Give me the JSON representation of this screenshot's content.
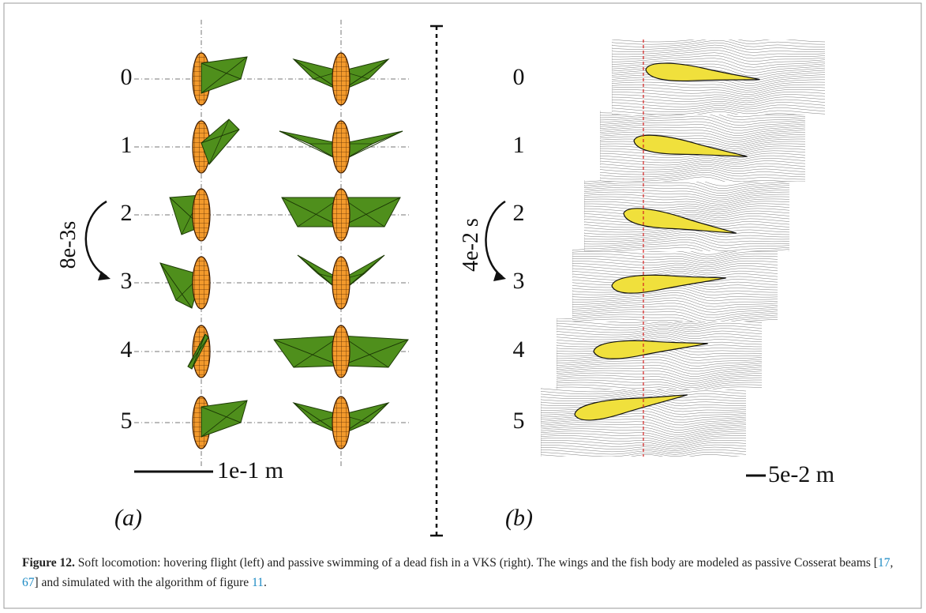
{
  "panel_a": {
    "frame_labels": [
      "0",
      "1",
      "2",
      "3",
      "4",
      "5"
    ],
    "time_step": "8e-3s",
    "scale_bar": "1e-1 m",
    "label": "(a)"
  },
  "panel_b": {
    "frame_labels": [
      "0",
      "1",
      "2",
      "3",
      "4",
      "5"
    ],
    "time_step": "4e-2 s",
    "scale_bar": "5e-2 m",
    "label": "(b)"
  },
  "caption": {
    "label": "Figure 12.",
    "text_1": " Soft locomotion: hovering flight (left) and passive swimming of a dead fish in a VKS (right). The wings and the fish body are modeled as passive Cosserat beams [",
    "ref_1": "17",
    "text_2": ", ",
    "ref_2": "67",
    "text_3": "] and simulated with the algorithm of figure ",
    "ref_3": "11",
    "text_4": "."
  }
}
